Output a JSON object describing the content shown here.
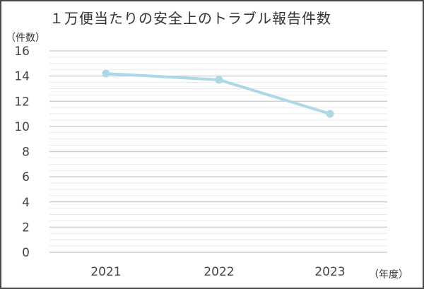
{
  "chart_data": {
    "type": "line",
    "title": "１万便当たりの安全上のトラブル報告件数",
    "ylabel": "（件数）",
    "xlabel": "（年度）",
    "categories": [
      "2021",
      "2022",
      "2023"
    ],
    "series": [
      {
        "values": [
          14.2,
          13.7,
          11.0
        ]
      }
    ],
    "ylim": [
      0,
      16
    ],
    "yticks": [
      0,
      2,
      4,
      6,
      8,
      10,
      12,
      14,
      16
    ],
    "minor_step": 0.5,
    "grid": true,
    "colors": {
      "line": "#add8e6",
      "grid_major": "#c8c8c8",
      "grid_minor": "#e4e4e4",
      "frame": "#4a4a4a"
    }
  }
}
